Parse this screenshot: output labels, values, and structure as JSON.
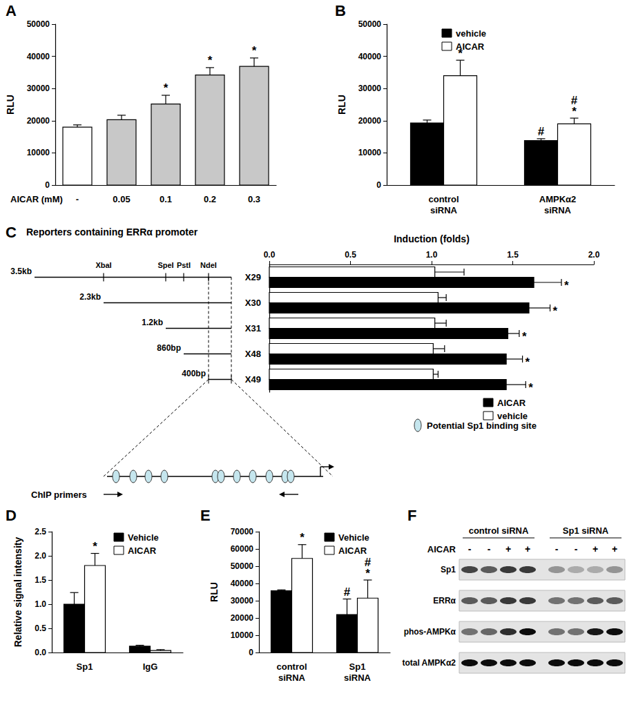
{
  "chart_data": [
    {
      "type": "bar",
      "title": "A",
      "categories": [
        "-",
        "0.05",
        "0.1",
        "0.2",
        "0.3"
      ],
      "x_label": "AICAR (mM)",
      "y_label": "RLU",
      "values": [
        18000,
        20300,
        25200,
        34200,
        36900
      ],
      "errors": [
        700,
        1400,
        2700,
        2300,
        2600
      ],
      "annotations": [
        null,
        null,
        "*",
        "*",
        "*"
      ],
      "colors": [
        "#ffffff",
        "#c8c8c8",
        "#c8c8c8",
        "#c8c8c8",
        "#c8c8c8"
      ],
      "ylim": [
        0,
        50000
      ],
      "yticks": [
        0,
        10000,
        20000,
        30000,
        40000,
        50000
      ],
      "grid": false
    },
    {
      "type": "bar",
      "title": "B",
      "categories": [
        "control siRNA",
        "AMPKα2 siRNA"
      ],
      "y_label": "RLU",
      "series": [
        {
          "name": "vehicle",
          "color": "#000000",
          "values": [
            19300,
            13800
          ],
          "errors": [
            900,
            600
          ],
          "annotations": [
            null,
            "#"
          ]
        },
        {
          "name": "AICAR",
          "color": "#ffffff",
          "values": [
            34000,
            19000
          ],
          "errors": [
            4800,
            1800
          ],
          "annotations": [
            "*",
            "#\n*"
          ]
        }
      ],
      "ylim": [
        0,
        50000
      ],
      "yticks": [
        0,
        10000,
        20000,
        30000,
        40000,
        50000
      ],
      "grid": false,
      "legend": "top-left"
    },
    {
      "type": "bar",
      "title": "C",
      "orientation": "horizontal",
      "categories": [
        "X29",
        "X30",
        "X31",
        "X48",
        "X49"
      ],
      "x_label": "Induction (folds)",
      "series": [
        {
          "name": "AICAR",
          "color": "#000000",
          "values": [
            1.63,
            1.6,
            1.47,
            1.46,
            1.46
          ],
          "errors": [
            0.17,
            0.13,
            0.07,
            0.1,
            0.12
          ],
          "annotations": [
            "*",
            "*",
            "*",
            "*",
            "*"
          ]
        },
        {
          "name": "vehicle",
          "color": "#ffffff",
          "values": [
            1.02,
            1.04,
            1.02,
            1.01,
            1.01
          ],
          "errors": [
            0.18,
            0.05,
            0.07,
            0.07,
            0.03
          ]
        }
      ],
      "xlim": [
        0,
        2
      ],
      "xticks": [
        {
          "value": 0,
          "label": "0.0"
        },
        0.5,
        {
          "value": 1,
          "label": "1.0"
        },
        1.5,
        {
          "value": 2,
          "label": "2.0"
        }
      ],
      "grid": false,
      "legend": "bottom-right"
    },
    {
      "type": "bar",
      "title": "D",
      "categories": [
        "Sp1",
        "IgG"
      ],
      "y_label": "Relative signal intensity",
      "series": [
        {
          "name": "Vehicle",
          "color": "#000000",
          "values": [
            1.0,
            0.13
          ],
          "errors": [
            0.24,
            0.02
          ]
        },
        {
          "name": "AICAR",
          "color": "#ffffff",
          "values": [
            1.8,
            0.04
          ],
          "errors": [
            0.25,
            0.02
          ],
          "annotations": [
            "*",
            null
          ]
        }
      ],
      "ylim": [
        0,
        2.5
      ],
      "yticks": [
        {
          "value": 0,
          "label": "0.0"
        },
        0.5,
        {
          "value": 1,
          "label": "1.0"
        },
        1.5,
        {
          "value": 2,
          "label": "2.0"
        },
        2.5
      ],
      "grid": false,
      "legend": "top-right"
    },
    {
      "type": "bar",
      "title": "E",
      "categories": [
        "control siRNA",
        "Sp1 siRNA"
      ],
      "y_label": "RLU",
      "series": [
        {
          "name": "Vehicle",
          "color": "#000000",
          "values": [
            35800,
            22000
          ],
          "errors": [
            500,
            9000
          ],
          "annotations": [
            null,
            "#"
          ]
        },
        {
          "name": "AICAR",
          "color": "#ffffff",
          "values": [
            54500,
            31500
          ],
          "errors": [
            8000,
            10500
          ],
          "annotations": [
            "*",
            "#\n*"
          ]
        }
      ],
      "ylim": [
        0,
        70000
      ],
      "yticks": [
        0,
        10000,
        20000,
        30000,
        40000,
        50000,
        60000,
        70000
      ],
      "grid": false,
      "legend": "top-right"
    }
  ],
  "diagram": {
    "title": "Reporters containing ERRα promoter",
    "sites": [
      "XbaI",
      "SpeI",
      "PstI",
      "NdeI"
    ],
    "reporters": [
      "3.5kb",
      "2.3kb",
      "1.2kb",
      "860bp",
      "400bp"
    ],
    "sp1_legend": "Potential Sp1 binding site",
    "primers_label": "ChIP primers"
  },
  "blot": {
    "title": "F",
    "groups": [
      "control siRNA",
      "Sp1 siRNA"
    ],
    "treatment": "AICAR",
    "lanes": [
      "-",
      "-",
      "+",
      "+",
      "-",
      "-",
      "+",
      "+"
    ],
    "rows": [
      {
        "name": "Sp1",
        "intensity": [
          0.7,
          0.6,
          0.75,
          0.75,
          0.35,
          0.25,
          0.25,
          0.35
        ]
      },
      {
        "name": "ERRα",
        "intensity": [
          0.6,
          0.6,
          0.75,
          0.75,
          0.5,
          0.5,
          0.6,
          0.6
        ]
      },
      {
        "name": "phos-AMPKα",
        "intensity": [
          0.5,
          0.55,
          0.8,
          0.95,
          0.5,
          0.5,
          0.9,
          0.95
        ]
      },
      {
        "name": "total AMPKα2",
        "intensity": [
          0.95,
          0.95,
          0.95,
          0.95,
          0.95,
          0.95,
          0.95,
          0.95
        ]
      }
    ]
  }
}
